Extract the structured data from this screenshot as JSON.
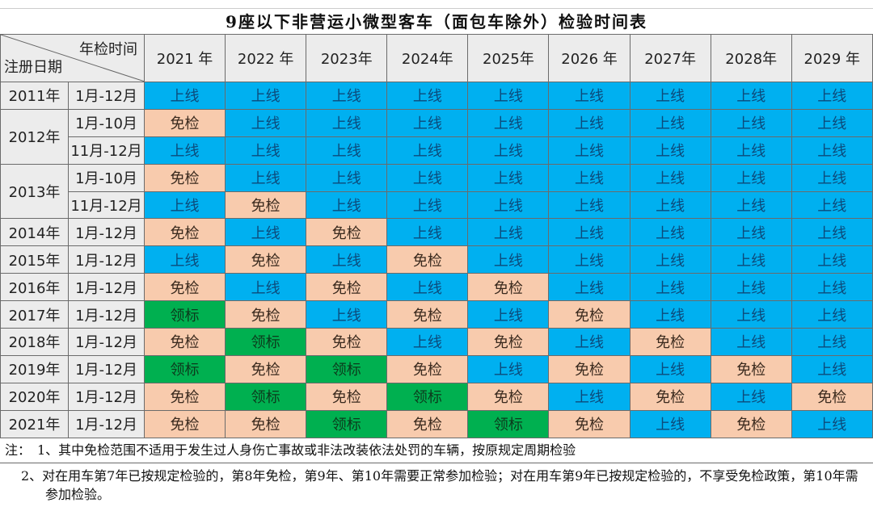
{
  "title": "9座以下非营运小微型客车（面包车除外）检验时间表",
  "corner": {
    "top_right": "年检时间",
    "bottom_left": "注册日期"
  },
  "years": [
    "2021 年",
    "2022 年",
    "2023年",
    "2024年",
    "2025年",
    "2026 年",
    "2027年",
    "2028年",
    "2029 年"
  ],
  "status_labels": {
    "up": "上线",
    "ex": "免检",
    "lb": "领标"
  },
  "colors": {
    "up": "#00b0f0",
    "ex": "#f8cbad",
    "lb": "#00b050"
  },
  "groups": [
    {
      "year": "2011年",
      "rows": [
        {
          "period": "1月-12月",
          "cells": [
            "up",
            "up",
            "up",
            "up",
            "up",
            "up",
            "up",
            "up",
            "up"
          ]
        }
      ]
    },
    {
      "year": "2012年",
      "rows": [
        {
          "period": "1月-10月",
          "cells": [
            "ex",
            "up",
            "up",
            "up",
            "up",
            "up",
            "up",
            "up",
            "up"
          ]
        },
        {
          "period": "11月-12月",
          "cells": [
            "up",
            "up",
            "up",
            "up",
            "up",
            "up",
            "up",
            "up",
            "up"
          ]
        }
      ]
    },
    {
      "year": "2013年",
      "rows": [
        {
          "period": "1月-10月",
          "cells": [
            "ex",
            "up",
            "up",
            "up",
            "up",
            "up",
            "up",
            "up",
            "up"
          ]
        },
        {
          "period": "11月-12月",
          "cells": [
            "up",
            "ex",
            "up",
            "up",
            "up",
            "up",
            "up",
            "up",
            "up"
          ]
        }
      ]
    },
    {
      "year": "2014年",
      "rows": [
        {
          "period": "1月-12月",
          "cells": [
            "ex",
            "up",
            "ex",
            "up",
            "up",
            "up",
            "up",
            "up",
            "up"
          ]
        }
      ]
    },
    {
      "year": "2015年",
      "rows": [
        {
          "period": "1月-12月",
          "cells": [
            "up",
            "ex",
            "up",
            "ex",
            "up",
            "up",
            "up",
            "up",
            "up"
          ]
        }
      ]
    },
    {
      "year": "2016年",
      "rows": [
        {
          "period": "1月-12月",
          "cells": [
            "ex",
            "up",
            "ex",
            "up",
            "ex",
            "up",
            "up",
            "up",
            "up"
          ]
        }
      ]
    },
    {
      "year": "2017年",
      "rows": [
        {
          "period": "1月-12月",
          "cells": [
            "lb",
            "ex",
            "up",
            "ex",
            "up",
            "ex",
            "up",
            "up",
            "up"
          ]
        }
      ]
    },
    {
      "year": "2018年",
      "rows": [
        {
          "period": "1月-12月",
          "cells": [
            "ex",
            "lb",
            "ex",
            "up",
            "ex",
            "up",
            "ex",
            "up",
            "up"
          ]
        }
      ]
    },
    {
      "year": "2019年",
      "rows": [
        {
          "period": "1月-12月",
          "cells": [
            "lb",
            "ex",
            "lb",
            "ex",
            "up",
            "ex",
            "up",
            "ex",
            "up"
          ]
        }
      ]
    },
    {
      "year": "2020年",
      "rows": [
        {
          "period": "1月-12月",
          "cells": [
            "ex",
            "lb",
            "ex",
            "lb",
            "ex",
            "up",
            "ex",
            "up",
            "ex"
          ]
        }
      ]
    },
    {
      "year": "2021年",
      "rows": [
        {
          "period": "1月-12月",
          "cells": [
            "ex",
            "ex",
            "lb",
            "ex",
            "lb",
            "ex",
            "up",
            "ex",
            "up"
          ]
        }
      ]
    }
  ],
  "notes": {
    "note1": "注：　1、其中免检范围不适用于发生过人身伤亡事故或非法改装依法处罚的车辆，按原规定周期检验",
    "note2": "2、对在用车第7年已按规定检验的，第8年免检，第9年、第10年需要正常参加检验；对在用车第9年已按规定检验的，不享受免检政策，第10年需参加检验。"
  }
}
